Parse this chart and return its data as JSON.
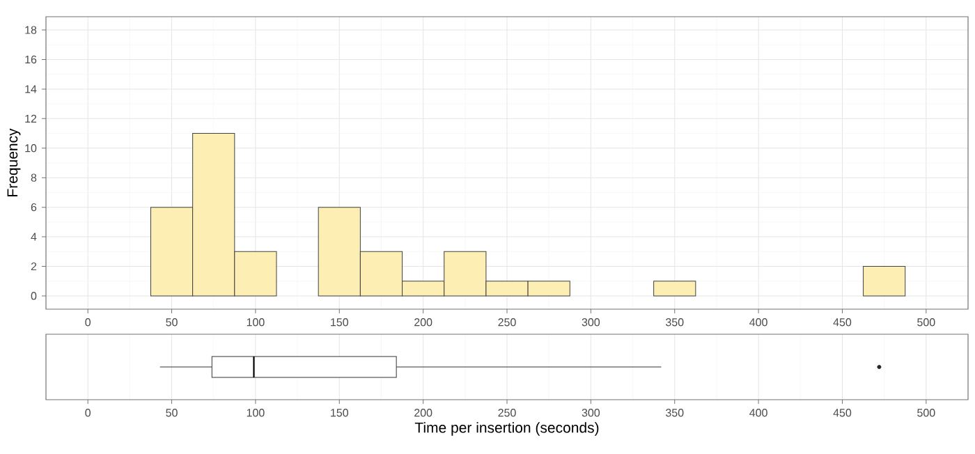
{
  "chart_data": [
    {
      "type": "histogram",
      "ylabel": "Frequency",
      "bins": [
        37.5,
        62.5,
        87.5,
        112.5,
        137.5,
        162.5,
        187.5,
        212.5,
        237.5,
        262.5,
        287.5,
        312.5,
        337.5,
        362.5,
        387.5,
        412.5,
        437.5,
        462.5,
        487.5
      ],
      "values": [
        6,
        11,
        3,
        0,
        6,
        3,
        1,
        3,
        1,
        1,
        0,
        0,
        1,
        0,
        0,
        0,
        0,
        2
      ],
      "color": "#fdeeb3",
      "xlim": [
        -25,
        525
      ],
      "xticks": [
        0,
        50,
        100,
        150,
        200,
        250,
        300,
        350,
        400,
        450,
        500
      ],
      "ylim": [
        -0.9,
        18.9
      ],
      "yticks": [
        0,
        2,
        4,
        6,
        8,
        10,
        12,
        14,
        16,
        18
      ],
      "grid": true
    },
    {
      "type": "box",
      "orientation": "horizontal",
      "categories": [
        null
      ],
      "xlabel": "Time per insertion (seconds)",
      "boxes": [
        {
          "low": 43,
          "q1": 74,
          "median": 99,
          "q3": 184,
          "high": 342,
          "outliers": [
            472
          ]
        }
      ],
      "xlim": [
        -25,
        525
      ],
      "xticks": [
        0,
        50,
        100,
        150,
        200,
        250,
        300,
        350,
        400,
        450,
        500
      ],
      "grid": "x"
    }
  ]
}
